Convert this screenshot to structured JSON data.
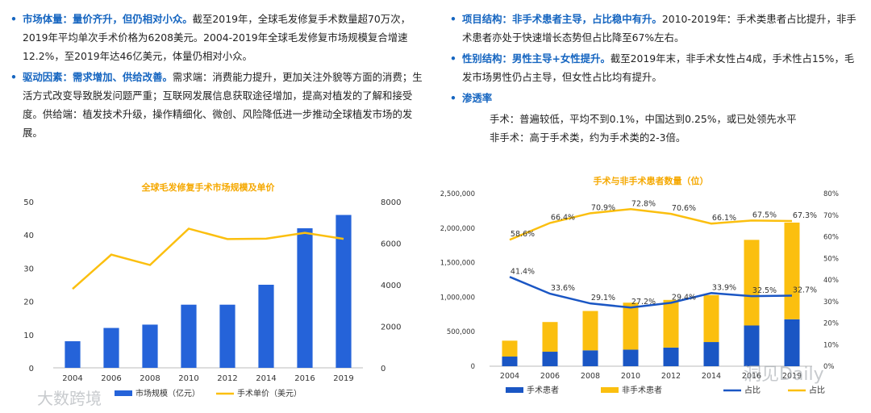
{
  "left": {
    "bullets": [
      {
        "keyword": "市场体量：量价齐升，但仍相对小众。",
        "text": "截至2019年，全球毛发修复手术数量超70万次，2019年平均单次手术价格为6208美元。2004-2019年全球毛发修复市场规模复合增速12.2%，至2019年达46亿美元，体量仍相对小众。"
      },
      {
        "keyword": "驱动因素：需求增加、供给改善。",
        "text": "需求端：消费能力提升，更加关注外貌等方面的消费；生活方式改变导致脱发问题严重；互联网发展信息获取途径增加，提高对植发的了解和接受度。供给端：植发技术升级，操作精细化、微创、风险降低进一步推动全球植发市场的发展。"
      }
    ]
  },
  "right": {
    "bullets": [
      {
        "keyword": "项目结构：非手术患者主导，占比稳中有升。",
        "text": "2010-2019年：手术类患者占比提升，非手术患者亦处于快速增长态势但占比降至67%左右。"
      },
      {
        "keyword": "性别结构：男性主导+女性提升。",
        "text": "截至2019年末，非手术女性占4成，手术性占15%，毛发市场男性仍占主导，但女性占比均有提升。"
      },
      {
        "keyword": "渗透率",
        "text": ""
      }
    ],
    "sublines": [
      "手术：普遍较低，平均不到0.1%，中国达到0.25%，或已处领先水平",
      "非手术：高于手术类，约为手术类的2-3倍。"
    ]
  },
  "watermarks": {
    "left": "大数跨境",
    "right": "洞见Daily"
  },
  "colors": {
    "blue": "#2563d9",
    "yellow": "#fbbf0f",
    "dark_blue": "#1a56c4",
    "title": "#f5a800",
    "keyword": "#1565c0"
  },
  "chart_data": [
    {
      "type": "bar",
      "title": "全球毛发修复手术市场规模及单价",
      "categories": [
        "2004",
        "2006",
        "2008",
        "2010",
        "2012",
        "2014",
        "2016",
        "2019"
      ],
      "series": [
        {
          "name": "市场规模（亿元）",
          "type": "bar",
          "axis": "left",
          "values": [
            8,
            12,
            13,
            19,
            19,
            25,
            42,
            46
          ]
        },
        {
          "name": "手术单价（美元）",
          "type": "line",
          "axis": "right",
          "values": [
            3800,
            5450,
            4950,
            6700,
            6200,
            6220,
            6500,
            6208
          ]
        }
      ],
      "ylim_left": [
        0,
        50
      ],
      "yticks_left": [
        0,
        10,
        20,
        30,
        40,
        50
      ],
      "ylim_right": [
        0,
        8000
      ],
      "yticks_right": [
        0,
        2000,
        4000,
        6000,
        8000
      ],
      "grid": false,
      "legend": "bottom"
    },
    {
      "type": "bar",
      "title": "手术与非手术患者数量（位）",
      "categories": [
        "2004",
        "2006",
        "2008",
        "2010",
        "2012",
        "2014",
        "2016",
        "2019"
      ],
      "series": [
        {
          "name": "手术患者",
          "type": "stacked-bar",
          "axis": "left",
          "values": [
            140000,
            210000,
            230000,
            240000,
            270000,
            350000,
            590000,
            680000
          ]
        },
        {
          "name": "非手术患者",
          "type": "stacked-bar",
          "axis": "left",
          "values": [
            230000,
            430000,
            570000,
            680000,
            690000,
            680000,
            1240000,
            1400000
          ]
        },
        {
          "name": "占比",
          "type": "line",
          "axis": "right",
          "values": [
            41.4,
            33.6,
            29.1,
            27.2,
            29.4,
            33.9,
            32.5,
            32.7
          ]
        },
        {
          "name": "占比",
          "type": "line",
          "axis": "right",
          "values": [
            58.6,
            66.4,
            70.9,
            72.8,
            70.6,
            66.1,
            67.5,
            67.3
          ]
        }
      ],
      "ylim_left": [
        0,
        2500000
      ],
      "yticks_left": [
        "0",
        "500,000",
        "1,000,000",
        "1,500,000",
        "2,000,000",
        "2,500,000"
      ],
      "ylim_right": [
        0,
        80
      ],
      "yticks_right": [
        "0%",
        "10%",
        "20%",
        "30%",
        "40%",
        "50%",
        "60%",
        "70%",
        "80%"
      ],
      "grid": false,
      "legend": "bottom"
    }
  ]
}
